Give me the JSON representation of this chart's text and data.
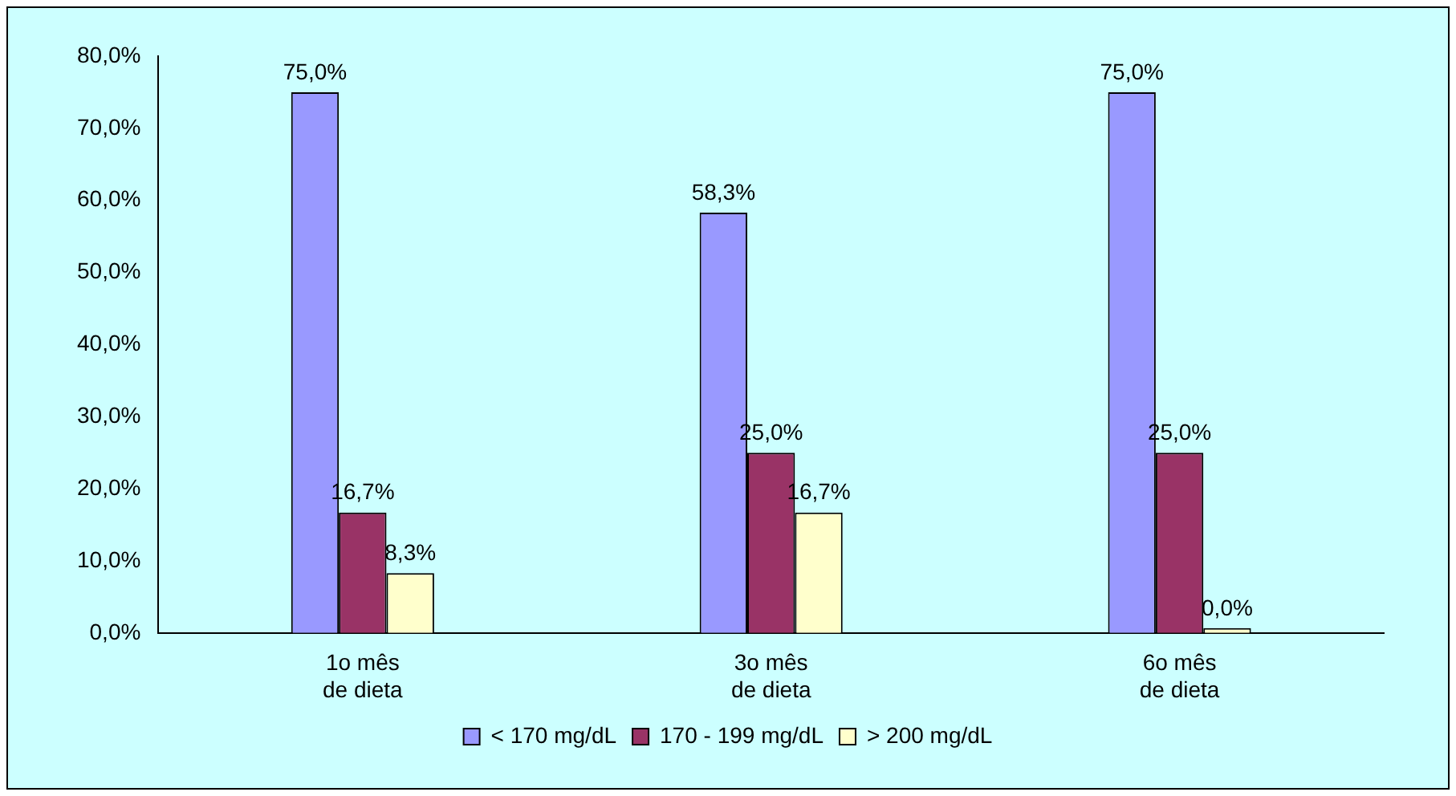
{
  "chart_data": {
    "type": "bar",
    "categories": [
      "1o mês\nde dieta",
      "3o mês\nde dieta",
      "6o mês\nde dieta"
    ],
    "series": [
      {
        "name": "< 170 mg/dL",
        "color": "#9999ff",
        "values": [
          75.0,
          58.3,
          75.0
        ],
        "value_labels": [
          "75,0%",
          "58,3%",
          "75,0%"
        ]
      },
      {
        "name": "170 - 199 mg/dL",
        "color": "#993366",
        "values": [
          16.7,
          25.0,
          25.0
        ],
        "value_labels": [
          "16,7%",
          "25,0%",
          "25,0%"
        ]
      },
      {
        "name": "> 200 mg/dL",
        "color": "#ffffcc",
        "values": [
          8.3,
          16.7,
          0.0
        ],
        "value_labels": [
          "8,3%",
          "16,7%",
          "0,0%"
        ]
      }
    ],
    "ylim": [
      0,
      80
    ],
    "yticks": [
      {
        "value": 0,
        "label": "0,0%"
      },
      {
        "value": 10,
        "label": "10,0%"
      },
      {
        "value": 20,
        "label": "20,0%"
      },
      {
        "value": 30,
        "label": "30,0%"
      },
      {
        "value": 40,
        "label": "40,0%"
      },
      {
        "value": 50,
        "label": "50,0%"
      },
      {
        "value": 60,
        "label": "60,0%"
      },
      {
        "value": 70,
        "label": "70,0%"
      },
      {
        "value": 80,
        "label": "80,0%"
      }
    ],
    "grid": false,
    "legend": "bottom"
  }
}
